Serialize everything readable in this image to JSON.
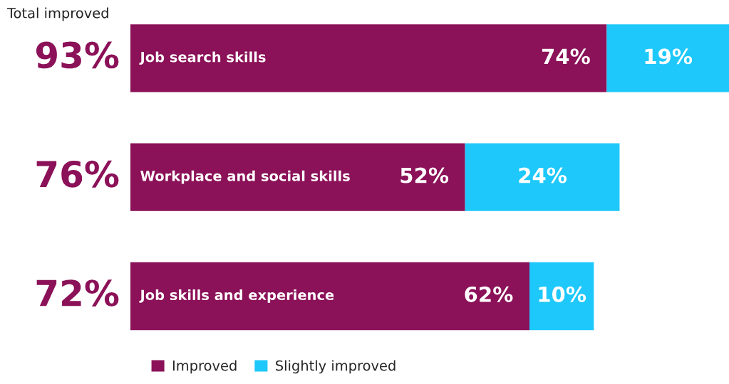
{
  "chart_data": {
    "type": "bar",
    "orientation": "horizontal",
    "stacked": true,
    "categories": [
      "Job search skills",
      "Workplace and social skills",
      "Job skills and experience"
    ],
    "series": [
      {
        "name": "Improved",
        "color": "#8b1158",
        "values": [
          74,
          52,
          62
        ],
        "value_labels": [
          "74%",
          "52%",
          "62%"
        ]
      },
      {
        "name": "Slightly improved",
        "color": "#1ec8fb",
        "values": [
          19,
          24,
          10
        ],
        "value_labels": [
          "19%",
          "24%",
          "10%"
        ]
      }
    ],
    "totals": [
      "93%",
      "76%",
      "72%"
    ],
    "annotations": [
      "Total improved"
    ],
    "legend": "bottom"
  }
}
